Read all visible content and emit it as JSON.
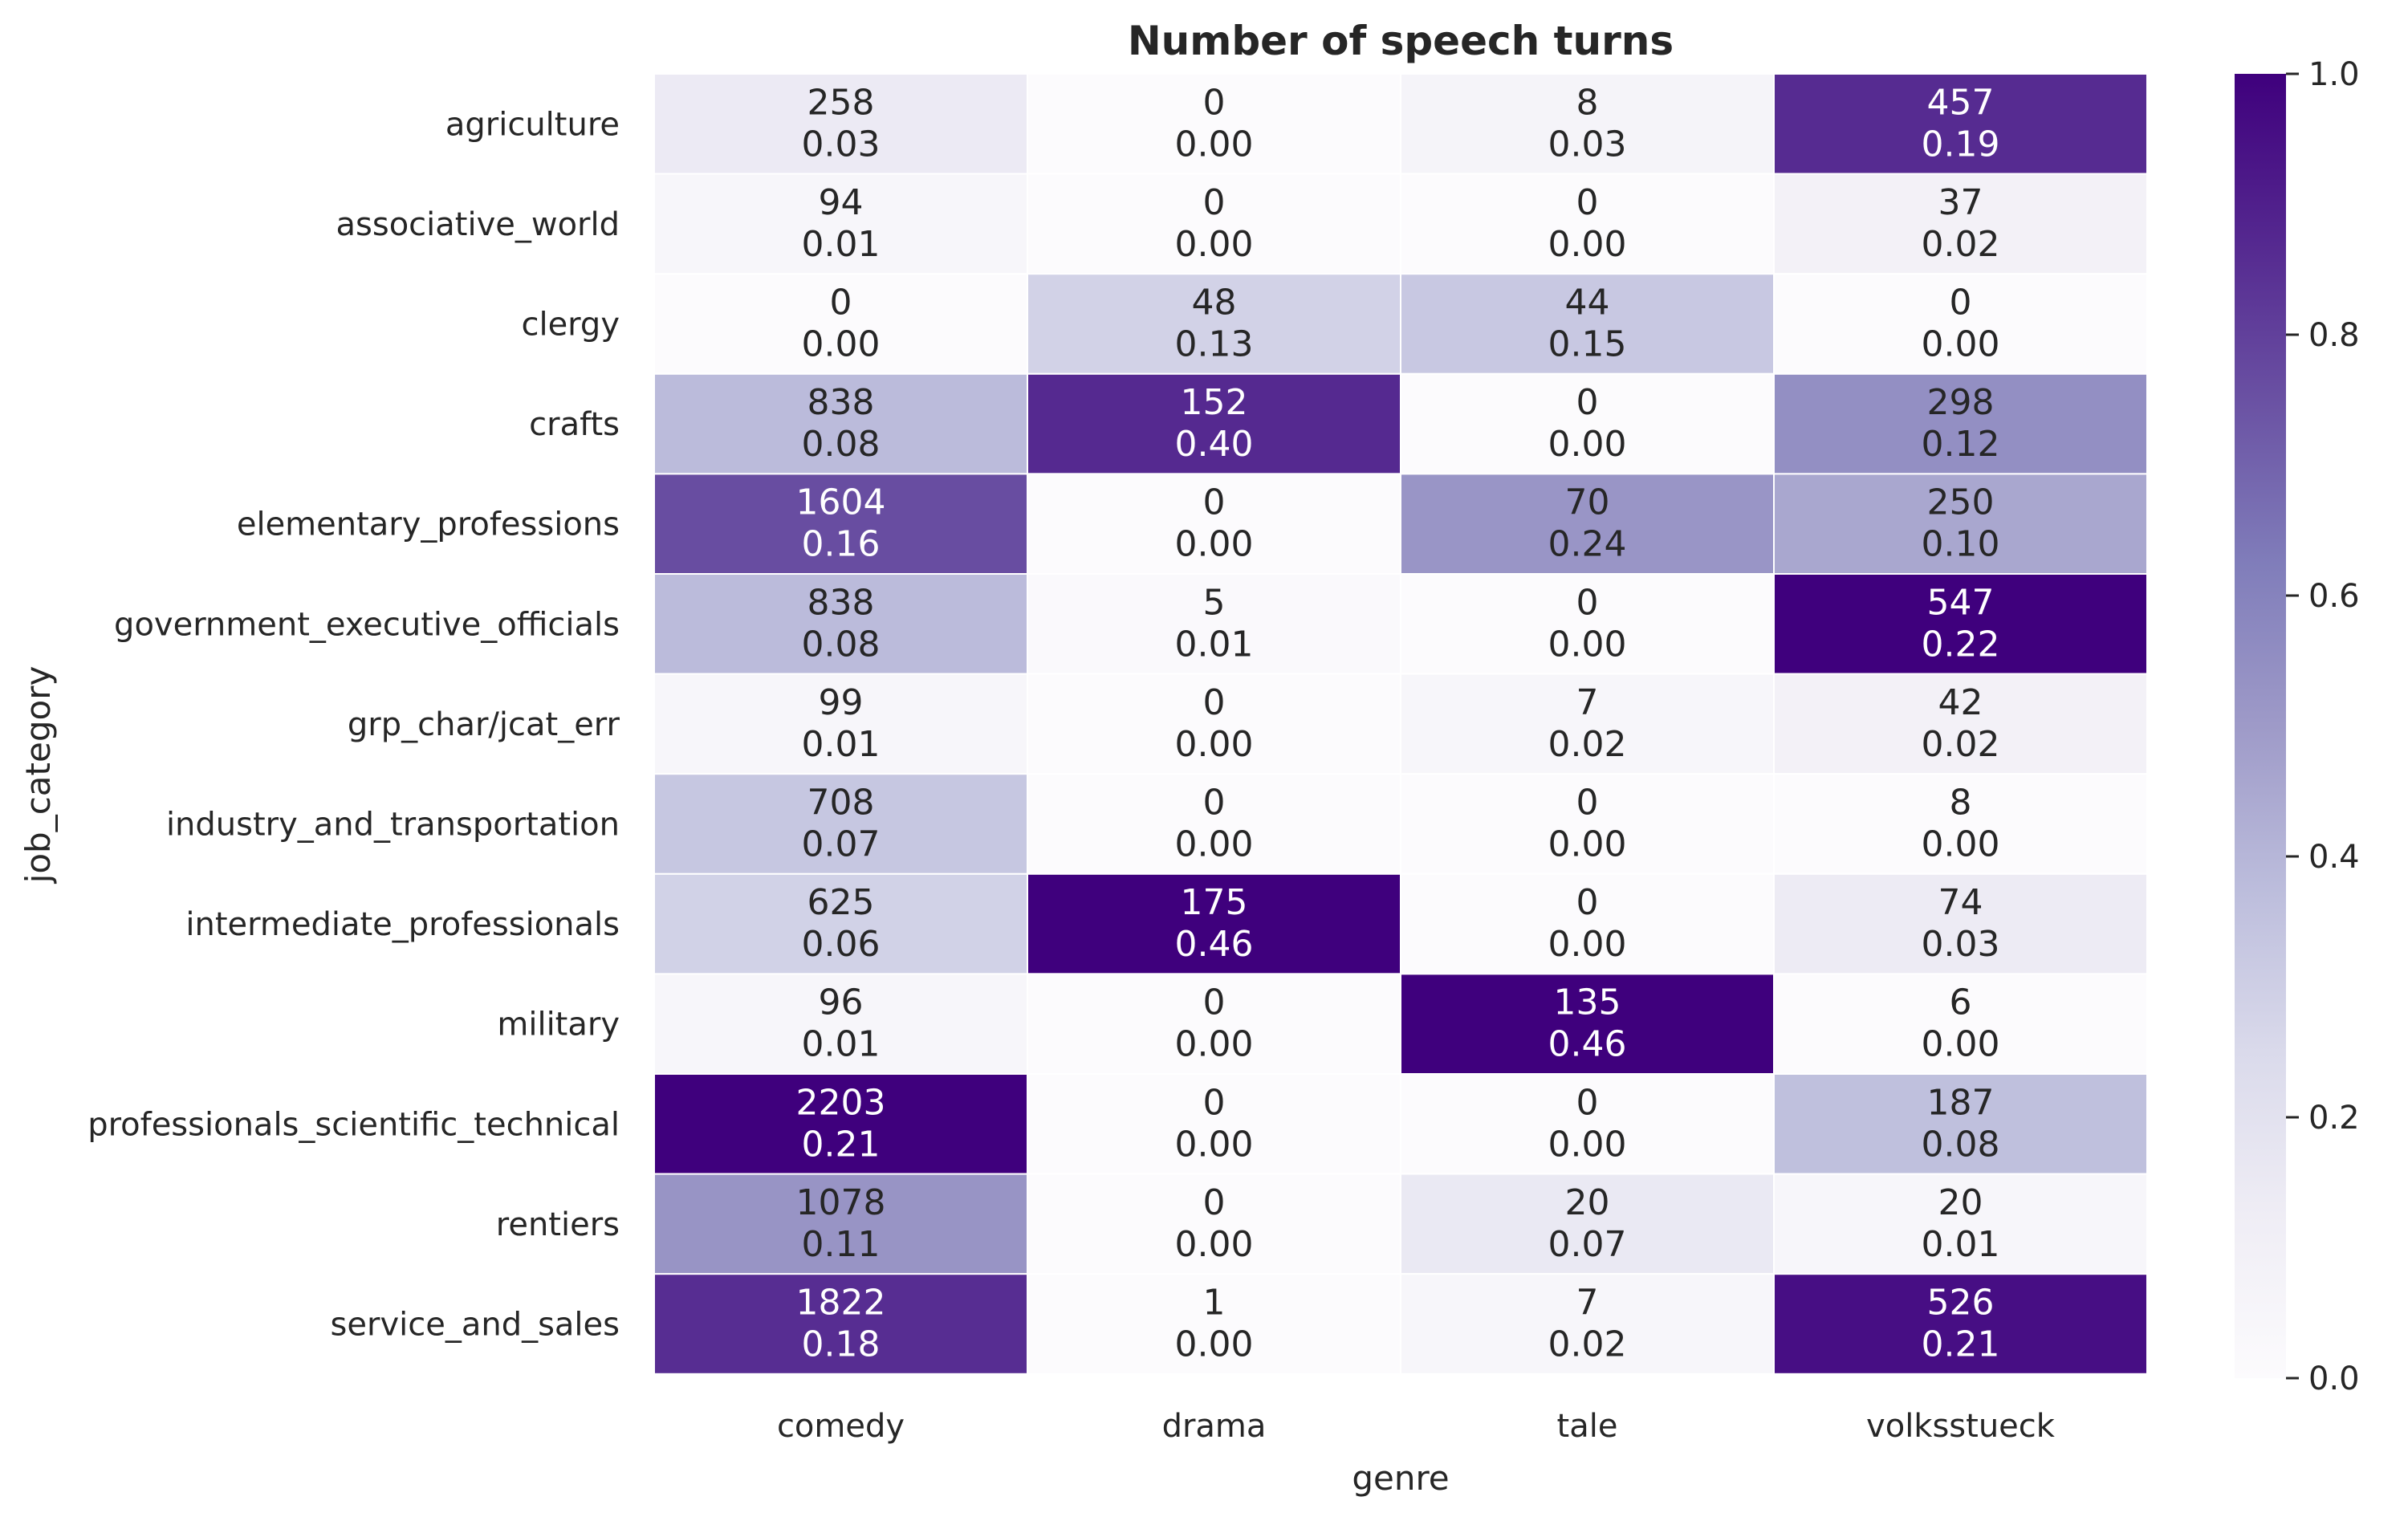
{
  "chart_data": {
    "type": "heatmap",
    "title": "Number of speech turns",
    "xlabel": "genre",
    "ylabel": "job_category",
    "columns": [
      "comedy",
      "drama",
      "tale",
      "volksstueck"
    ],
    "rows": [
      "agriculture",
      "associative_world",
      "clergy",
      "crafts",
      "elementary_professions",
      "government_executive_officials",
      "grp_char/jcat_err",
      "industry_and_transportation",
      "intermediate_professionals",
      "military",
      "professionals_scientific_technical",
      "rentiers",
      "service_and_sales"
    ],
    "counts": [
      [
        258,
        0,
        8,
        457
      ],
      [
        94,
        0,
        0,
        37
      ],
      [
        0,
        48,
        44,
        0
      ],
      [
        838,
        152,
        0,
        298
      ],
      [
        1604,
        0,
        70,
        250
      ],
      [
        838,
        5,
        0,
        547
      ],
      [
        99,
        0,
        7,
        42
      ],
      [
        708,
        0,
        0,
        8
      ],
      [
        625,
        175,
        0,
        74
      ],
      [
        96,
        0,
        135,
        6
      ],
      [
        2203,
        0,
        0,
        187
      ],
      [
        1078,
        0,
        20,
        20
      ],
      [
        1822,
        1,
        7,
        526
      ]
    ],
    "shares": [
      [
        "0.03",
        "0.00",
        "0.03",
        "0.19"
      ],
      [
        "0.01",
        "0.00",
        "0.00",
        "0.02"
      ],
      [
        "0.00",
        "0.13",
        "0.15",
        "0.00"
      ],
      [
        "0.08",
        "0.40",
        "0.00",
        "0.12"
      ],
      [
        "0.16",
        "0.00",
        "0.24",
        "0.10"
      ],
      [
        "0.08",
        "0.01",
        "0.00",
        "0.22"
      ],
      [
        "0.01",
        "0.00",
        "0.02",
        "0.02"
      ],
      [
        "0.07",
        "0.00",
        "0.00",
        "0.00"
      ],
      [
        "0.06",
        "0.46",
        "0.00",
        "0.03"
      ],
      [
        "0.01",
        "0.00",
        "0.46",
        "0.00"
      ],
      [
        "0.21",
        "0.00",
        "0.00",
        "0.08"
      ],
      [
        "0.11",
        "0.00",
        "0.07",
        "0.01"
      ],
      [
        "0.18",
        "0.00",
        "0.02",
        "0.21"
      ]
    ],
    "colorbar": {
      "range": [
        0,
        1
      ],
      "ticks": [
        "0.0",
        "0.2",
        "0.4",
        "0.6",
        "0.8",
        "1.0"
      ],
      "colormap": "Purples",
      "colors": [
        "#fcfbfd",
        "#efedf5",
        "#dadaeb",
        "#bcbddc",
        "#9e9ac8",
        "#807dba",
        "#6a51a3",
        "#54278f",
        "#3f007d"
      ]
    }
  }
}
